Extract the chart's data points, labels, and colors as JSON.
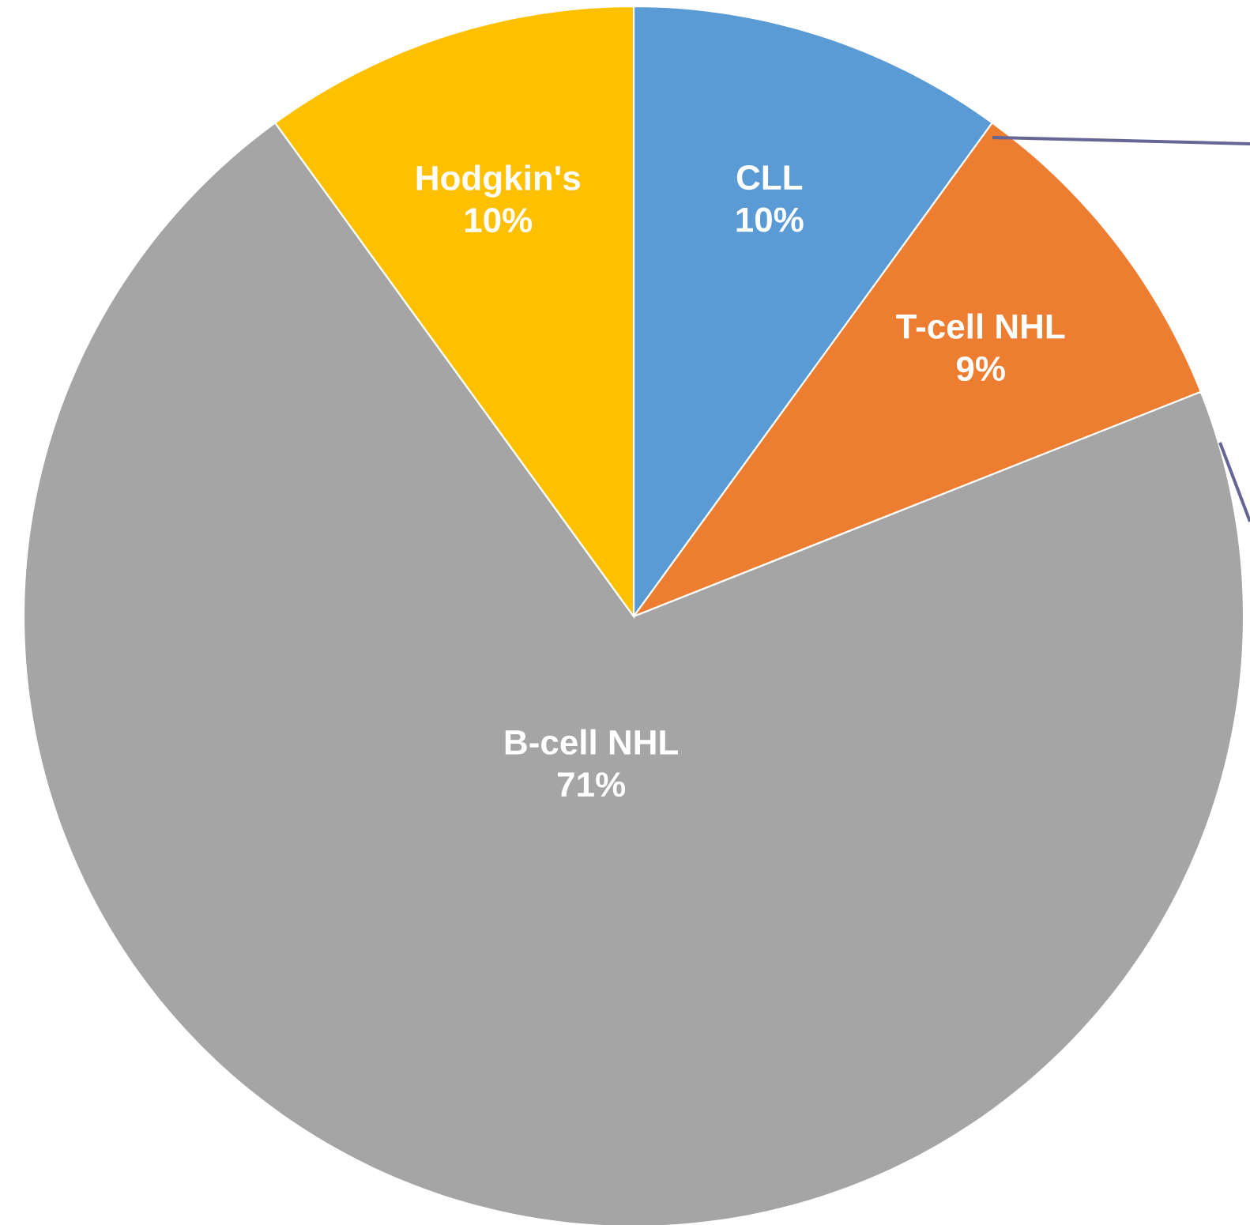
{
  "chart_data": {
    "type": "pie",
    "categories": [
      "CLL",
      "T-cell NHL",
      "B-cell NHL",
      "Hodgkin's"
    ],
    "values": [
      10,
      9,
      71,
      10
    ],
    "value_labels": [
      "10%",
      "9%",
      "71%",
      "10%"
    ],
    "colors": [
      "#5b9bd5",
      "#ed7d31",
      "#a5a5a5",
      "#ffc000"
    ]
  }
}
